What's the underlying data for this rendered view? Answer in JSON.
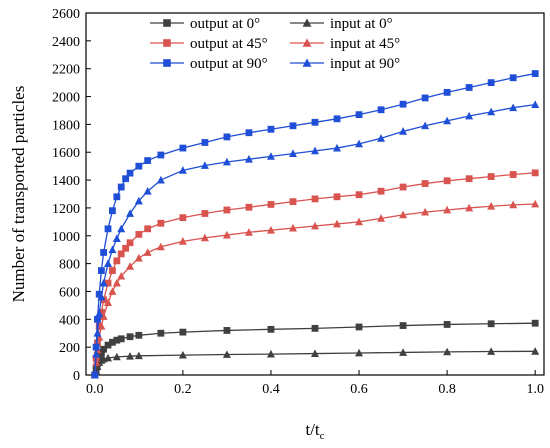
{
  "chart_data": {
    "type": "line",
    "title": "",
    "xlabel": "t/t",
    "xlabel_sub": "c",
    "ylabel": "Number of transported particles",
    "xlim": [
      -0.02,
      1.02
    ],
    "ylim": [
      0,
      2600
    ],
    "x_ticks": [
      0.0,
      0.2,
      0.4,
      0.6,
      0.8,
      1.0
    ],
    "x_tick_labels": [
      "0.0",
      "0.2",
      "0.4",
      "0.6",
      "0.8",
      "1.0"
    ],
    "y_ticks": [
      0,
      200,
      400,
      600,
      800,
      1000,
      1200,
      1400,
      1600,
      1800,
      2000,
      2200,
      2400,
      2600
    ],
    "y_tick_labels": [
      "0",
      "200",
      "400",
      "600",
      "800",
      "1000",
      "1200",
      "1400",
      "1600",
      "1800",
      "2000",
      "2200",
      "2400",
      "2600"
    ],
    "grid": false,
    "legend": {
      "placement": "top-center",
      "columns": 2
    },
    "series": [
      {
        "name": "output at 0°",
        "color": "#404040",
        "marker": "square",
        "points": [
          [
            0,
            0
          ],
          [
            0.003,
            40
          ],
          [
            0.006,
            80
          ],
          [
            0.01,
            120
          ],
          [
            0.015,
            160
          ],
          [
            0.02,
            185
          ],
          [
            0.03,
            215
          ],
          [
            0.04,
            235
          ],
          [
            0.05,
            250
          ],
          [
            0.06,
            260
          ],
          [
            0.08,
            275
          ],
          [
            0.1,
            285
          ],
          [
            0.15,
            300
          ],
          [
            0.2,
            308
          ],
          [
            0.3,
            320
          ],
          [
            0.4,
            328
          ],
          [
            0.5,
            335
          ],
          [
            0.6,
            345
          ],
          [
            0.7,
            355
          ],
          [
            0.8,
            363
          ],
          [
            0.9,
            368
          ],
          [
            1.0,
            372
          ]
        ]
      },
      {
        "name": "input at 0°",
        "color": "#404040",
        "marker": "triangle",
        "points": [
          [
            0,
            0
          ],
          [
            0.003,
            30
          ],
          [
            0.006,
            60
          ],
          [
            0.01,
            90
          ],
          [
            0.015,
            105
          ],
          [
            0.02,
            115
          ],
          [
            0.03,
            122
          ],
          [
            0.05,
            130
          ],
          [
            0.08,
            135
          ],
          [
            0.1,
            138
          ],
          [
            0.2,
            143
          ],
          [
            0.3,
            147
          ],
          [
            0.4,
            150
          ],
          [
            0.5,
            154
          ],
          [
            0.6,
            158
          ],
          [
            0.7,
            162
          ],
          [
            0.8,
            166
          ],
          [
            0.9,
            169
          ],
          [
            1.0,
            170
          ]
        ]
      },
      {
        "name": "output at 45°",
        "color": "#d9534f",
        "marker": "square",
        "points": [
          [
            0,
            0
          ],
          [
            0.003,
            120
          ],
          [
            0.006,
            230
          ],
          [
            0.01,
            350
          ],
          [
            0.015,
            450
          ],
          [
            0.02,
            540
          ],
          [
            0.03,
            660
          ],
          [
            0.04,
            750
          ],
          [
            0.05,
            820
          ],
          [
            0.06,
            870
          ],
          [
            0.07,
            910
          ],
          [
            0.08,
            950
          ],
          [
            0.1,
            1010
          ],
          [
            0.12,
            1050
          ],
          [
            0.15,
            1090
          ],
          [
            0.2,
            1130
          ],
          [
            0.25,
            1160
          ],
          [
            0.3,
            1185
          ],
          [
            0.35,
            1205
          ],
          [
            0.4,
            1225
          ],
          [
            0.45,
            1245
          ],
          [
            0.5,
            1265
          ],
          [
            0.55,
            1280
          ],
          [
            0.6,
            1295
          ],
          [
            0.65,
            1320
          ],
          [
            0.7,
            1350
          ],
          [
            0.75,
            1375
          ],
          [
            0.8,
            1395
          ],
          [
            0.85,
            1410
          ],
          [
            0.9,
            1425
          ],
          [
            0.95,
            1440
          ],
          [
            1.0,
            1452
          ]
        ]
      },
      {
        "name": "input at 45°",
        "color": "#d9534f",
        "marker": "triangle",
        "points": [
          [
            0,
            0
          ],
          [
            0.003,
            90
          ],
          [
            0.006,
            180
          ],
          [
            0.01,
            270
          ],
          [
            0.015,
            350
          ],
          [
            0.02,
            420
          ],
          [
            0.03,
            520
          ],
          [
            0.04,
            600
          ],
          [
            0.05,
            660
          ],
          [
            0.06,
            710
          ],
          [
            0.08,
            780
          ],
          [
            0.1,
            840
          ],
          [
            0.12,
            880
          ],
          [
            0.15,
            920
          ],
          [
            0.2,
            960
          ],
          [
            0.25,
            985
          ],
          [
            0.3,
            1005
          ],
          [
            0.35,
            1025
          ],
          [
            0.4,
            1040
          ],
          [
            0.45,
            1055
          ],
          [
            0.5,
            1070
          ],
          [
            0.55,
            1085
          ],
          [
            0.6,
            1100
          ],
          [
            0.65,
            1125
          ],
          [
            0.7,
            1150
          ],
          [
            0.75,
            1170
          ],
          [
            0.8,
            1185
          ],
          [
            0.85,
            1200
          ],
          [
            0.9,
            1212
          ],
          [
            0.95,
            1222
          ],
          [
            1.0,
            1228
          ]
        ]
      },
      {
        "name": "output at 90°",
        "color": "#1f4fd6",
        "marker": "square",
        "points": [
          [
            0,
            0
          ],
          [
            0.003,
            200
          ],
          [
            0.006,
            400
          ],
          [
            0.01,
            580
          ],
          [
            0.015,
            750
          ],
          [
            0.02,
            880
          ],
          [
            0.03,
            1050
          ],
          [
            0.04,
            1180
          ],
          [
            0.05,
            1280
          ],
          [
            0.06,
            1350
          ],
          [
            0.07,
            1410
          ],
          [
            0.08,
            1450
          ],
          [
            0.1,
            1500
          ],
          [
            0.12,
            1540
          ],
          [
            0.15,
            1580
          ],
          [
            0.2,
            1630
          ],
          [
            0.25,
            1670
          ],
          [
            0.3,
            1710
          ],
          [
            0.35,
            1740
          ],
          [
            0.4,
            1765
          ],
          [
            0.45,
            1790
          ],
          [
            0.5,
            1815
          ],
          [
            0.55,
            1840
          ],
          [
            0.6,
            1870
          ],
          [
            0.65,
            1905
          ],
          [
            0.7,
            1945
          ],
          [
            0.75,
            1990
          ],
          [
            0.8,
            2030
          ],
          [
            0.85,
            2065
          ],
          [
            0.9,
            2100
          ],
          [
            0.95,
            2135
          ],
          [
            1.0,
            2165
          ]
        ]
      },
      {
        "name": "input at 90°",
        "color": "#1f4fd6",
        "marker": "triangle",
        "points": [
          [
            0,
            0
          ],
          [
            0.003,
            150
          ],
          [
            0.006,
            300
          ],
          [
            0.01,
            440
          ],
          [
            0.015,
            560
          ],
          [
            0.02,
            660
          ],
          [
            0.03,
            800
          ],
          [
            0.04,
            900
          ],
          [
            0.05,
            980
          ],
          [
            0.06,
            1050
          ],
          [
            0.08,
            1160
          ],
          [
            0.1,
            1250
          ],
          [
            0.12,
            1320
          ],
          [
            0.15,
            1400
          ],
          [
            0.2,
            1470
          ],
          [
            0.25,
            1505
          ],
          [
            0.3,
            1530
          ],
          [
            0.35,
            1550
          ],
          [
            0.4,
            1570
          ],
          [
            0.45,
            1590
          ],
          [
            0.5,
            1610
          ],
          [
            0.55,
            1630
          ],
          [
            0.6,
            1660
          ],
          [
            0.65,
            1700
          ],
          [
            0.7,
            1750
          ],
          [
            0.75,
            1790
          ],
          [
            0.8,
            1825
          ],
          [
            0.85,
            1860
          ],
          [
            0.9,
            1890
          ],
          [
            0.95,
            1920
          ],
          [
            1.0,
            1942
          ]
        ]
      }
    ]
  }
}
